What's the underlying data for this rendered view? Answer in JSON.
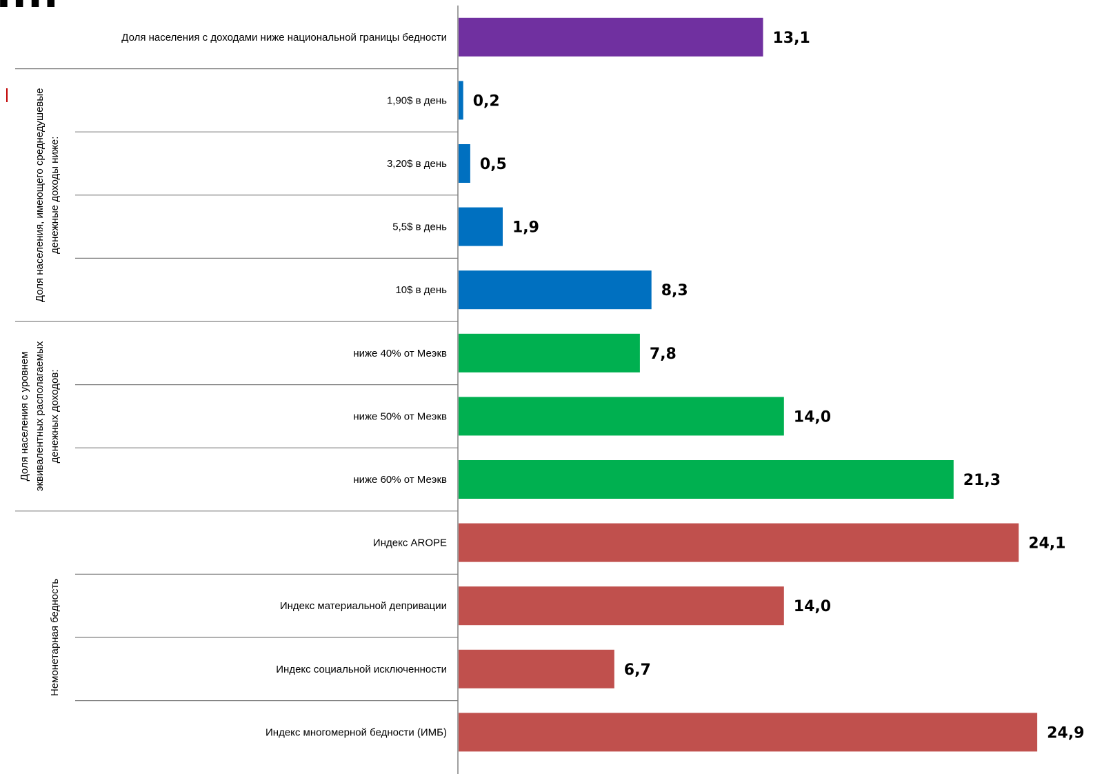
{
  "chart_data": {
    "type": "bar",
    "orientation": "horizontal",
    "title_fragment": "....",
    "categories": [
      "Доля населения с доходами ниже национальной границы бедности",
      "1,90$ в день",
      "3,20$ в день",
      "5,5$ в день",
      "10$ в день",
      "ниже 40% от Меэкв",
      "ниже 50% от Меэкв",
      "ниже 60% от Меэкв",
      "Индекс  AROPE",
      "Индекс  материальной депривации",
      "Индекс  социальной исключенности",
      "Индекс  многомерной бедности  (ИМБ)"
    ],
    "values": [
      13.1,
      0.2,
      0.5,
      1.9,
      8.3,
      7.8,
      14.0,
      21.3,
      24.1,
      14.0,
      6.7,
      24.9
    ],
    "value_labels": [
      "13,1",
      "0,2",
      "0,5",
      "1,9",
      "8,3",
      "7,8",
      "14,0",
      "21,3",
      "24,1",
      "14,0",
      "6,7",
      "24,9"
    ],
    "bar_colors": [
      "#7030a0",
      "#0070c0",
      "#0070c0",
      "#0070c0",
      "#0070c0",
      "#00b050",
      "#00b050",
      "#00b050",
      "#c0504d",
      "#c0504d",
      "#c0504d",
      "#c0504d"
    ],
    "groups": [
      {
        "label_lines": [
          "Доля  населения, имеющего  среднедушевые",
          "денежные  доходы ниже:"
        ],
        "start": 1,
        "end": 4
      },
      {
        "label_lines": [
          "Доля населения с уровнем",
          "эквивалентных располагаемых",
          "денежных  доходов:"
        ],
        "start": 5,
        "end": 7
      },
      {
        "label_lines": [
          "Немонетарная бедность"
        ],
        "start": 8,
        "end": 11
      }
    ],
    "xlim": [
      0,
      24.9
    ],
    "grid": false,
    "legend": "none"
  }
}
